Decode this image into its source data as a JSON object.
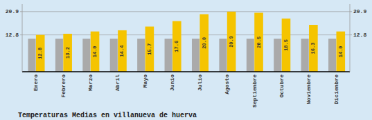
{
  "chart_data": {
    "type": "bar",
    "title": "Temperaturas Medias en villanueva de huerva",
    "categories": [
      "Enero",
      "Febrero",
      "Marzo",
      "Abril",
      "Mayo",
      "Junio",
      "Julio",
      "Agosto",
      "Septiembre",
      "Octubre",
      "Noviembre",
      "Diciembre"
    ],
    "series": [
      {
        "color": "#AAAAAA",
        "values": [
          11.5,
          11.5,
          11.5,
          11.5,
          11.5,
          11.5,
          11.5,
          11.5,
          11.5,
          11.5,
          11.5,
          11.5
        ]
      },
      {
        "color": "#F5C400",
        "values": [
          12.8,
          13.2,
          14.0,
          14.4,
          15.7,
          17.6,
          20.0,
          20.9,
          20.5,
          18.5,
          16.3,
          14.0
        ],
        "value_labels": [
          "12.8",
          "13.2",
          "14.0",
          "14.4",
          "15.7",
          "17.6",
          "20.0",
          "20.9",
          "20.5",
          "18.5",
          "16.3",
          "14.0"
        ],
        "data_labels": true
      }
    ],
    "ylim": [
      0.0,
      23.5
    ],
    "yticks": [
      12.8,
      20.9
    ],
    "y2lim": [
      0.0,
      23.5
    ],
    "y2ticks": [
      12.8,
      20.9
    ],
    "grid": true
  }
}
